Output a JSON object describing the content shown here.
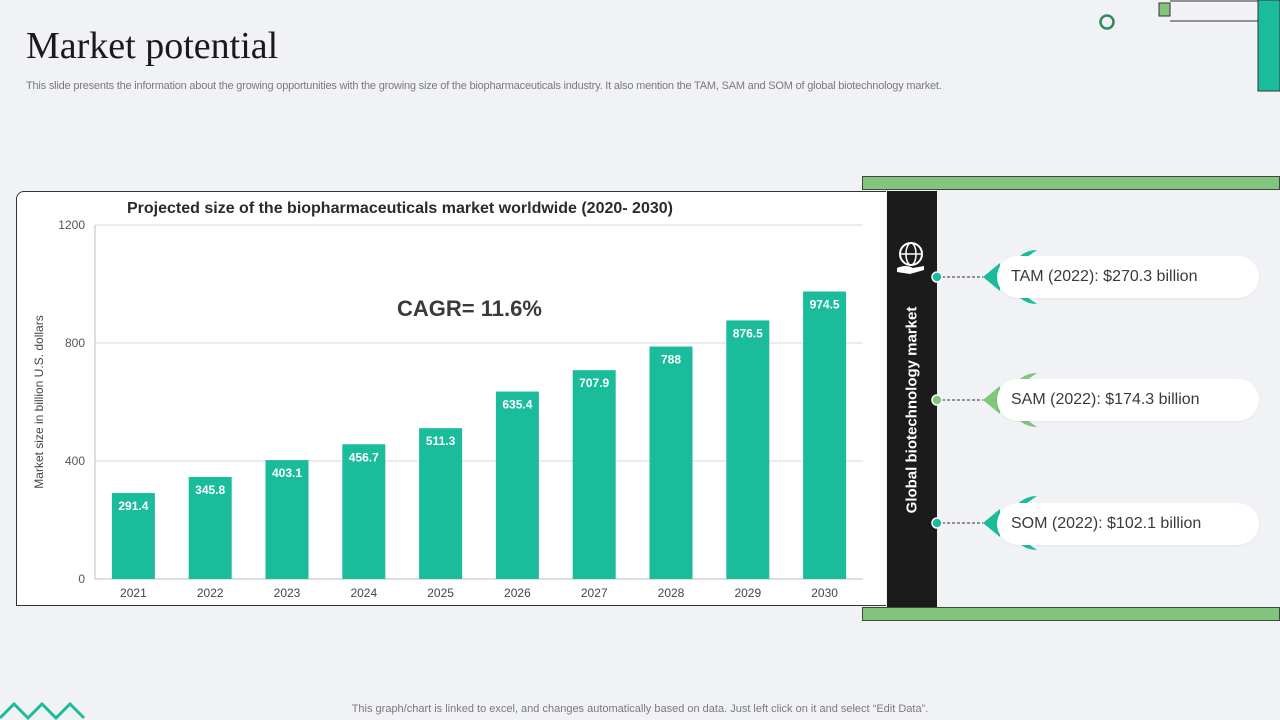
{
  "slide": {
    "title": "Market potential",
    "subtitle": "This slide presents the information about the growing opportunities with the growing size of the biopharmaceuticals industry. It  also mention the TAM,  SAM  and SOM  of global biotechnology market.",
    "footer": "This graph/chart is linked to excel,  and changes automatically based on data. Just left click on it and select “Edit Data”."
  },
  "chart_data": {
    "type": "bar",
    "title": "Projected size of the biopharmaceuticals market worldwide (2020- 2030)",
    "ylabel": "Market size in billion U.S. dollars",
    "xlabel": "",
    "categories": [
      "2021",
      "2022",
      "2023",
      "2024",
      "2025",
      "2026",
      "2027",
      "2028",
      "2029",
      "2030"
    ],
    "values": [
      291.4,
      345.8,
      403.1,
      456.7,
      511.3,
      635.4,
      707.9,
      788,
      876.5,
      974.5
    ],
    "ylim": [
      0,
      1200
    ],
    "yticks": [
      0,
      400,
      800,
      1200
    ],
    "grid": true,
    "bar_color": "#1abc9c",
    "annotation": "CAGR= 11.6%"
  },
  "market_panel": {
    "label": "Global biotechnology market",
    "items": [
      {
        "text": "TAM (2022): $270.3 billion",
        "accent": "#1abc9c"
      },
      {
        "text": "SAM (2022): $174.3 billion",
        "accent": "#82c57d"
      },
      {
        "text": "SOM (2022): $102.1 billion",
        "accent": "#1abc9c"
      }
    ]
  },
  "icons": {
    "globe": "globe-hand-icon"
  }
}
